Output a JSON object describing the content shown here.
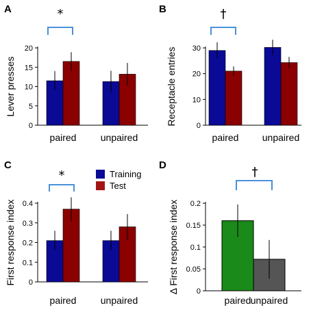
{
  "chart_data": [
    {
      "panel": "A",
      "type": "bar",
      "ylabel": "Lever presses",
      "categories": [
        "paired",
        "unpaired"
      ],
      "ylim": [
        0,
        20
      ],
      "yticks": [
        0,
        5,
        10,
        15,
        20
      ],
      "series": [
        {
          "name": "Training",
          "color": "#0a0a96",
          "values": [
            11.5,
            11.3
          ],
          "errors": [
            2.5,
            2.8
          ]
        },
        {
          "name": "Test",
          "color": "#8b0000",
          "values": [
            16.5,
            13.2
          ],
          "errors": [
            2.4,
            2.9
          ]
        }
      ],
      "significance": {
        "symbol": "*",
        "between": "paired"
      }
    },
    {
      "panel": "B",
      "type": "bar",
      "ylabel": "Receptacle entries",
      "categories": [
        "paired",
        "unpaired"
      ],
      "ylim": [
        0,
        30
      ],
      "yticks": [
        0,
        10,
        20,
        30
      ],
      "series": [
        {
          "name": "Training",
          "color": "#0a0a96",
          "values": [
            29,
            30.2
          ],
          "errors": [
            3.2,
            3
          ]
        },
        {
          "name": "Test",
          "color": "#8b0000",
          "values": [
            21,
            24.3
          ],
          "errors": [
            1.8,
            2.2
          ]
        }
      ],
      "significance": {
        "symbol": "†",
        "between": "paired"
      }
    },
    {
      "panel": "C",
      "type": "bar",
      "ylabel": "First response index",
      "categories": [
        "paired",
        "unpaired"
      ],
      "ylim": [
        0,
        0.4
      ],
      "yticks": [
        "0",
        "0.1",
        "0.2",
        "0.3",
        "0.4"
      ],
      "ytick_values": [
        0,
        0.1,
        0.2,
        0.3,
        0.4
      ],
      "series": [
        {
          "name": "Training",
          "color": "#0a0a96",
          "values": [
            0.21,
            0.21
          ],
          "errors": [
            0.05,
            0.05
          ]
        },
        {
          "name": "Test",
          "color": "#8b0000",
          "values": [
            0.37,
            0.28
          ],
          "errors": [
            0.06,
            0.065
          ]
        }
      ],
      "significance": {
        "symbol": "*",
        "between": "paired"
      },
      "legend": [
        {
          "label": "Training",
          "color": "#0a0a96"
        },
        {
          "label": "Test",
          "color": "#a31515"
        }
      ]
    },
    {
      "panel": "D",
      "type": "bar",
      "ylabel": "Δ First response index",
      "categories": [
        "paired",
        "unpaired"
      ],
      "ylim": [
        0,
        0.2
      ],
      "yticks": [
        "0",
        "0.05",
        "0.1",
        "0.15",
        "0.2"
      ],
      "ytick_values": [
        0,
        0.05,
        0.1,
        0.15,
        0.2
      ],
      "values": [
        0.16,
        0.072
      ],
      "errors": [
        0.037,
        0.044
      ],
      "colors": [
        "#1a8a1a",
        "#555555"
      ],
      "significance": {
        "symbol": "†",
        "between": "paired-unpaired"
      }
    }
  ]
}
